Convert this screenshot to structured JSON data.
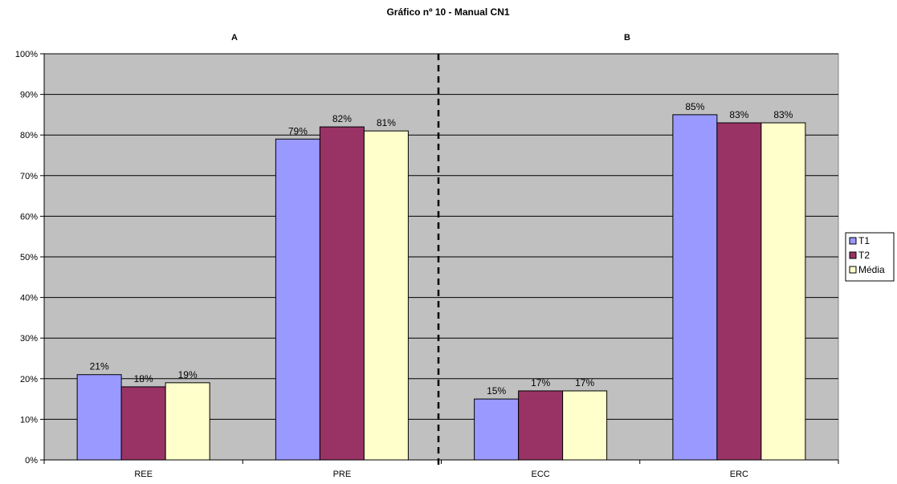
{
  "chart_data": {
    "type": "bar",
    "title": "Gráfico nº 10 - Manual CN1",
    "group_labels": [
      "A",
      "B"
    ],
    "categories": [
      "REE",
      "PRE",
      "ECC",
      "ERC"
    ],
    "series": [
      {
        "name": "T1",
        "color": "#9999ff",
        "values": [
          21,
          79,
          15,
          85
        ],
        "labels": [
          "21%",
          "79%",
          "15%",
          "85%"
        ]
      },
      {
        "name": "T2",
        "color": "#993366",
        "values": [
          18,
          82,
          17,
          83
        ],
        "labels": [
          "18%",
          "82%",
          "17%",
          "83%"
        ]
      },
      {
        "name": "Média",
        "color": "#ffffcc",
        "values": [
          19,
          81,
          17,
          83
        ],
        "labels": [
          "19%",
          "81%",
          "17%",
          "83%"
        ]
      }
    ],
    "y_ticks": [
      "0%",
      "10%",
      "20%",
      "30%",
      "40%",
      "50%",
      "60%",
      "70%",
      "80%",
      "90%",
      "100%"
    ],
    "ylim": [
      0,
      100
    ],
    "grid": true,
    "plot_background": "#c0c0c0",
    "legend_position": "right",
    "divider": "dashed line between PRE and ECC"
  }
}
